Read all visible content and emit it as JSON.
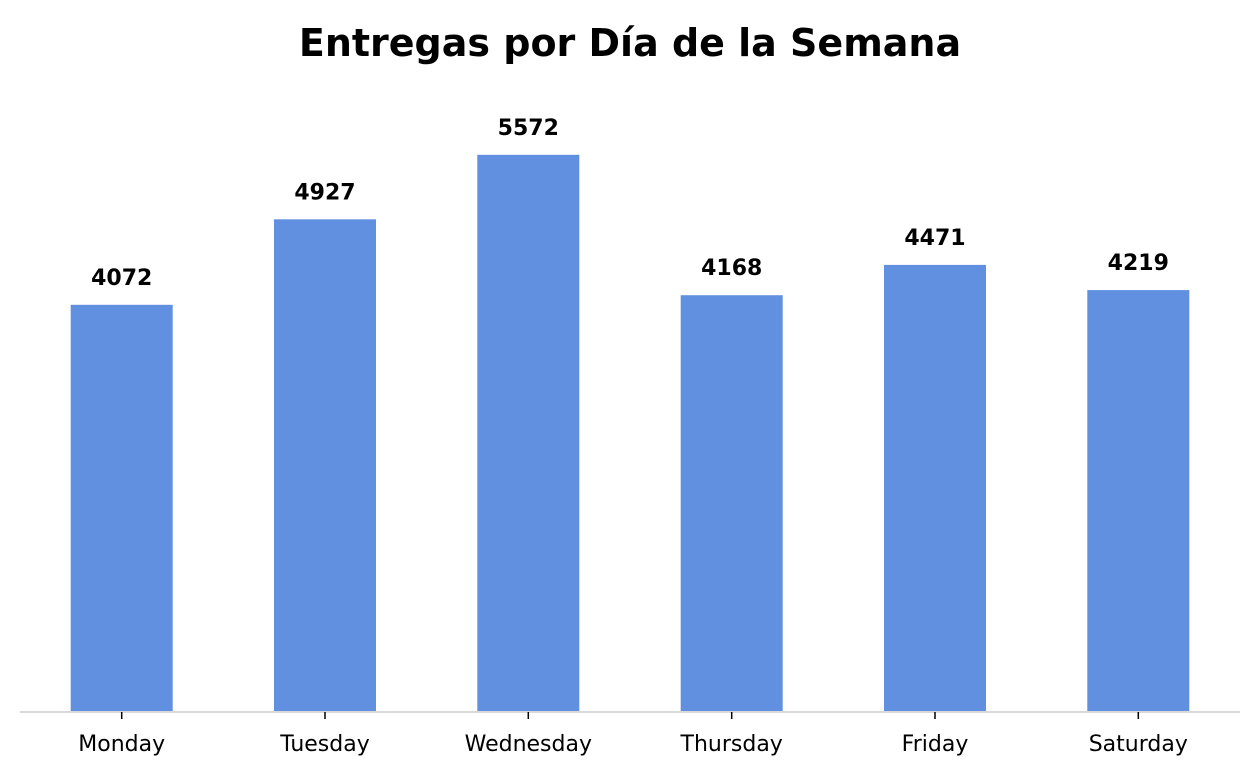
{
  "chart_data": {
    "type": "bar",
    "title": "Entregas por Día de la Semana",
    "xlabel": "",
    "ylabel": "",
    "categories": [
      "Monday",
      "Tuesday",
      "Wednesday",
      "Thursday",
      "Friday",
      "Saturday"
    ],
    "values": [
      4072,
      4927,
      5572,
      4168,
      4471,
      4219
    ],
    "ylim": [
      0,
      5850
    ],
    "grid": false,
    "legend": "none",
    "bar_color": "#6190E0",
    "axis_color": "#D9D9D9"
  }
}
